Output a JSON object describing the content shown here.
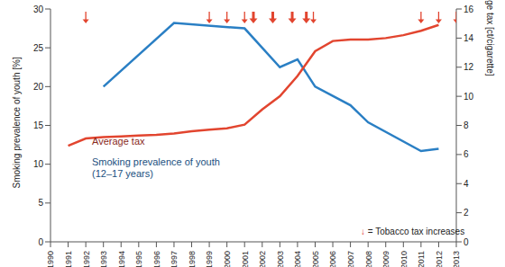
{
  "chart_data": {
    "type": "line",
    "xlim": [
      1990,
      2013
    ],
    "xticks": [
      1990,
      1991,
      1992,
      1993,
      1994,
      1995,
      1996,
      1997,
      1998,
      1999,
      2000,
      2001,
      2002,
      2003,
      2004,
      2005,
      2006,
      2007,
      2008,
      2009,
      2010,
      2011,
      2012,
      2013
    ],
    "ylabel": "Smoking prevalence of youth [%]",
    "ylim": [
      0,
      30
    ],
    "yticks": [
      0,
      5,
      10,
      15,
      20,
      25,
      30
    ],
    "y2label": "Average tax [ct/cigarette]",
    "y2lim": [
      0,
      16
    ],
    "y2ticks": [
      0,
      2,
      4,
      6,
      8,
      10,
      12,
      14,
      16
    ],
    "series": [
      {
        "name": "Smoking prevalence of youth (12–17 years)",
        "color": "#2a7fc4",
        "x": [
          1993,
          1997,
          2001,
          2003,
          2004,
          2005,
          2007,
          2008,
          2011,
          2012
        ],
        "values": [
          20,
          28.2,
          27.5,
          22.5,
          23.5,
          20,
          17.6,
          15.4,
          11.7,
          12.0
        ]
      },
      {
        "name": "Average tax",
        "color": "#e2452f",
        "axis": "y2",
        "x": [
          1991,
          1992,
          1993,
          1994,
          1995,
          1996,
          1997,
          1998,
          1999,
          2000,
          2001,
          2002,
          2003,
          2004,
          2005,
          2006,
          2007,
          2008,
          2009,
          2010,
          2011,
          2012
        ],
        "values": [
          6.6,
          7.1,
          7.2,
          7.25,
          7.3,
          7.35,
          7.45,
          7.6,
          7.7,
          7.8,
          8.05,
          9.1,
          10.0,
          11.4,
          13.1,
          13.8,
          13.9,
          13.9,
          14.0,
          14.2,
          14.5,
          14.9
        ]
      }
    ],
    "tax_increases": {
      "label": "↓ = Tobacco tax increases",
      "color": "#e2452f",
      "marker": "arrow",
      "points": [
        {
          "x": 1992,
          "line_style": "thin"
        },
        {
          "x": 1999,
          "line_style": "thin"
        },
        {
          "x": 2000,
          "line_style": "thin"
        },
        {
          "x": 2001,
          "line_style": "thin"
        },
        {
          "x": 2001.5,
          "line_style": "bold"
        },
        {
          "x": 2002.6,
          "line_style": "bold"
        },
        {
          "x": 2003.7,
          "line_style": "bold"
        },
        {
          "x": 2004.5,
          "line_style": "bold"
        },
        {
          "x": 2004.9,
          "line_style": "thin"
        },
        {
          "x": 2011,
          "line_style": "thin"
        },
        {
          "x": 2012,
          "line_style": "thin"
        },
        {
          "x": 2013,
          "line_style": "thin"
        }
      ]
    }
  }
}
